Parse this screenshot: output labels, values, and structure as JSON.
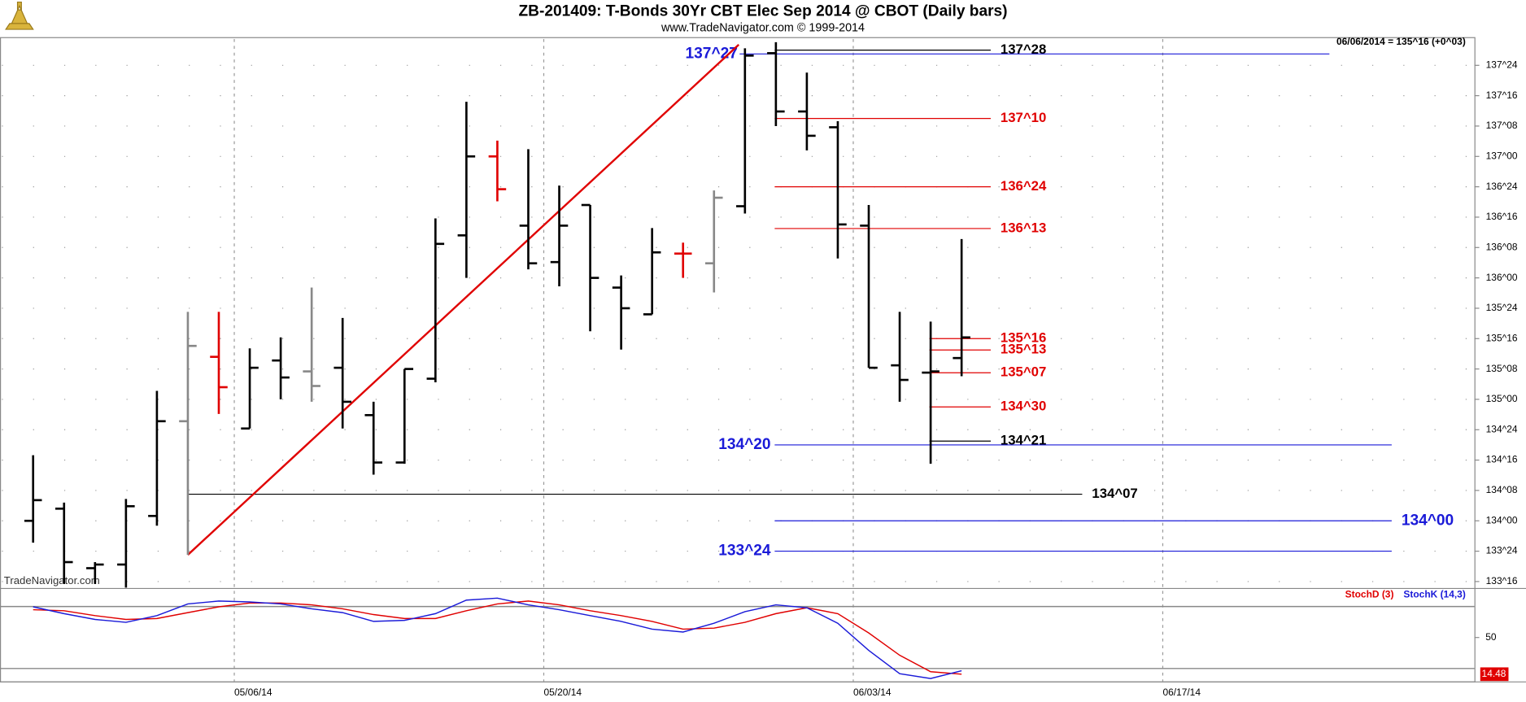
{
  "chart_data": [
    {
      "type": "ohlc",
      "title": "ZB-201409:  T-Bonds 30Yr CBT Elec Sep 2014 @ CBOT  (Daily bars)",
      "subtitle": "www.TradeNavigator.com © 1999-2014",
      "annotation": "06/06/2014 = 135^16 (+0^03)",
      "watermark": "TradeNavigator.com",
      "ylim": [
        133.455,
        137.982
      ],
      "yticks": [
        {
          "value": 137.75,
          "label": "137^24"
        },
        {
          "value": 137.5,
          "label": "137^16"
        },
        {
          "value": 137.25,
          "label": "137^08"
        },
        {
          "value": 137,
          "label": "137^00"
        },
        {
          "value": 136.75,
          "label": "136^24"
        },
        {
          "value": 136.5,
          "label": "136^16"
        },
        {
          "value": 136.25,
          "label": "136^08"
        },
        {
          "value": 136,
          "label": "136^00"
        },
        {
          "value": 135.75,
          "label": "135^24"
        },
        {
          "value": 135.5,
          "label": "135^16"
        },
        {
          "value": 135.25,
          "label": "135^08"
        },
        {
          "value": 135,
          "label": "135^00"
        },
        {
          "value": 134.75,
          "label": "134^24"
        },
        {
          "value": 134.5,
          "label": "134^16"
        },
        {
          "value": 134.25,
          "label": "134^08"
        },
        {
          "value": 134,
          "label": "134^00"
        },
        {
          "value": 133.75,
          "label": "133^24"
        },
        {
          "value": 133.5,
          "label": "133^16"
        }
      ],
      "xlim": [
        -1.07,
        46.57
      ],
      "xticks": [
        {
          "value": 6.5,
          "label": "05/06/14"
        },
        {
          "value": 16.5,
          "label": "05/20/14"
        },
        {
          "value": 26.5,
          "label": "06/03/14"
        },
        {
          "value": 36.5,
          "label": "06/17/14"
        }
      ],
      "grid": true,
      "bars": [
        {
          "open": 134.0,
          "high": 134.54,
          "low": 133.82,
          "close": 134.17,
          "color": "#000000"
        },
        {
          "open": 134.1,
          "high": 134.15,
          "low": 133.48,
          "close": 133.66,
          "color": "#000000"
        },
        {
          "open": 133.61,
          "high": 133.66,
          "low": 133.48,
          "close": 133.64,
          "color": "#000000"
        },
        {
          "open": 133.64,
          "high": 134.18,
          "low": 133.45,
          "close": 134.12,
          "color": "#000000"
        },
        {
          "open": 134.04,
          "high": 135.07,
          "low": 133.96,
          "close": 134.82,
          "color": "#000000"
        },
        {
          "open": 134.82,
          "high": 135.72,
          "low": 133.72,
          "close": 135.44,
          "color": "#888888"
        },
        {
          "open": 135.35,
          "high": 135.72,
          "low": 134.88,
          "close": 135.1,
          "color": "#e00000"
        },
        {
          "open": 134.76,
          "high": 135.42,
          "low": 134.76,
          "close": 135.26,
          "color": "#000000"
        },
        {
          "open": 135.32,
          "high": 135.51,
          "low": 135.0,
          "close": 135.18,
          "color": "#000000"
        },
        {
          "open": 135.23,
          "high": 135.92,
          "low": 134.98,
          "close": 135.11,
          "color": "#888888"
        },
        {
          "open": 135.26,
          "high": 135.67,
          "low": 134.76,
          "close": 134.98,
          "color": "#000000"
        },
        {
          "open": 134.87,
          "high": 134.98,
          "low": 134.38,
          "close": 134.48,
          "color": "#000000"
        },
        {
          "open": 134.48,
          "high": 135.25,
          "low": 134.47,
          "close": 135.25,
          "color": "#000000"
        },
        {
          "open": 135.17,
          "high": 136.49,
          "low": 135.14,
          "close": 136.28,
          "color": "#000000"
        },
        {
          "open": 136.35,
          "high": 137.45,
          "low": 136.0,
          "close": 137.0,
          "color": "#000000"
        },
        {
          "open": 137.0,
          "high": 137.13,
          "low": 136.63,
          "close": 136.73,
          "color": "#e00000"
        },
        {
          "open": 136.43,
          "high": 137.06,
          "low": 136.07,
          "close": 136.12,
          "color": "#000000"
        },
        {
          "open": 136.13,
          "high": 136.76,
          "low": 135.93,
          "close": 136.43,
          "color": "#000000"
        },
        {
          "open": 136.6,
          "high": 136.6,
          "low": 135.56,
          "close": 136.0,
          "color": "#000000"
        },
        {
          "open": 135.92,
          "high": 136.02,
          "low": 135.41,
          "close": 135.75,
          "color": "#000000"
        },
        {
          "open": 135.7,
          "high": 136.41,
          "low": 135.7,
          "close": 136.21,
          "color": "#000000"
        },
        {
          "open": 136.2,
          "high": 136.29,
          "low": 136.0,
          "close": 136.2,
          "color": "#e00000"
        },
        {
          "open": 136.12,
          "high": 136.72,
          "low": 135.88,
          "close": 136.66,
          "color": "#888888"
        },
        {
          "open": 136.59,
          "high": 137.89,
          "low": 136.53,
          "close": 137.83,
          "color": "#000000"
        },
        {
          "open": 137.85,
          "high": 137.94,
          "low": 137.25,
          "close": 137.37,
          "color": "#000000"
        },
        {
          "open": 137.37,
          "high": 137.69,
          "low": 137.05,
          "close": 137.17,
          "color": "#000000"
        },
        {
          "open": 137.24,
          "high": 137.29,
          "low": 136.16,
          "close": 136.44,
          "color": "#000000"
        },
        {
          "open": 136.43,
          "high": 136.6,
          "low": 135.26,
          "close": 135.26,
          "color": "#000000"
        },
        {
          "open": 135.28,
          "high": 135.72,
          "low": 134.98,
          "close": 135.16,
          "color": "#000000"
        },
        {
          "open": 135.22,
          "high": 135.64,
          "low": 134.47,
          "close": 135.23,
          "color": "#000000"
        },
        {
          "open": 135.34,
          "high": 136.32,
          "low": 135.19,
          "close": 135.51,
          "color": "#000000"
        }
      ],
      "trendline": {
        "x": [
          5,
          22.8
        ],
        "y": [
          133.72,
          137.92
        ],
        "color": "#e00000"
      },
      "levels": [
        {
          "value": 137.875,
          "label": "137^28",
          "color": "#000000"
        },
        {
          "value": 137.84375,
          "label": "137^27",
          "color": "#1a1ad8"
        },
        {
          "value": 137.3125,
          "label": "137^10",
          "color": "#e00000"
        },
        {
          "value": 136.75,
          "label": "136^24",
          "color": "#e00000"
        },
        {
          "value": 136.40625,
          "label": "136^13",
          "color": "#e00000"
        },
        {
          "value": 135.5,
          "label": "135^16",
          "color": "#e00000"
        },
        {
          "value": 135.40625,
          "label": "135^13",
          "color": "#e00000"
        },
        {
          "value": 135.21875,
          "label": "135^07",
          "color": "#e00000"
        },
        {
          "value": 134.9375,
          "label": "134^30",
          "color": "#e00000"
        },
        {
          "value": 134.65625,
          "label": "134^21",
          "color": "#000000"
        },
        {
          "value": 134.625,
          "label": "134^20",
          "color": "#1a1ad8"
        },
        {
          "value": 134.21875,
          "label": "134^07",
          "color": "#000000"
        },
        {
          "value": 134,
          "label": "134^00",
          "color": "#1a1ad8"
        },
        {
          "value": 133.75,
          "label": "133^24",
          "color": "#1a1ad8"
        }
      ]
    },
    {
      "type": "line",
      "ylim": [
        7.5,
        97
      ],
      "yticks": [
        50
      ],
      "levels": [
        80,
        20
      ],
      "series": [
        {
          "name": "StochD (3)",
          "color": "#e00000",
          "values": [
            76.9,
            75.9,
            71.2,
            67.5,
            68.4,
            74.1,
            79.7,
            83.4,
            83.4,
            81.6,
            77.8,
            72.2,
            68.4,
            68.4,
            75.9,
            82.5,
            85.3,
            81.6,
            75.9,
            71.2,
            65.6,
            58.1,
            59.1,
            64.7,
            73.1,
            78.8,
            73.1,
            54.4,
            32.8,
            16.9,
            14.48
          ],
          "value_labels": [
            null,
            null,
            null,
            null,
            null,
            null,
            null,
            null,
            null,
            null,
            null,
            null,
            null,
            null,
            null,
            null,
            null,
            null,
            null,
            null,
            null,
            null,
            null,
            null,
            null,
            null,
            null,
            null,
            null,
            null,
            "14.48"
          ]
        },
        {
          "name": "StochK (14,3)",
          "color": "#1a1ad8",
          "values": [
            79.7,
            73.1,
            67.5,
            64.7,
            71.2,
            82.5,
            85.3,
            84.4,
            82.5,
            77.8,
            74.1,
            65.6,
            66.6,
            73.1,
            86.2,
            88.1,
            81.6,
            76.9,
            71.2,
            65.6,
            58.1,
            55.3,
            63.8,
            75.0,
            81.6,
            78.8,
            63.8,
            37.5,
            15.0,
            10.3,
            17.8
          ]
        }
      ]
    }
  ]
}
